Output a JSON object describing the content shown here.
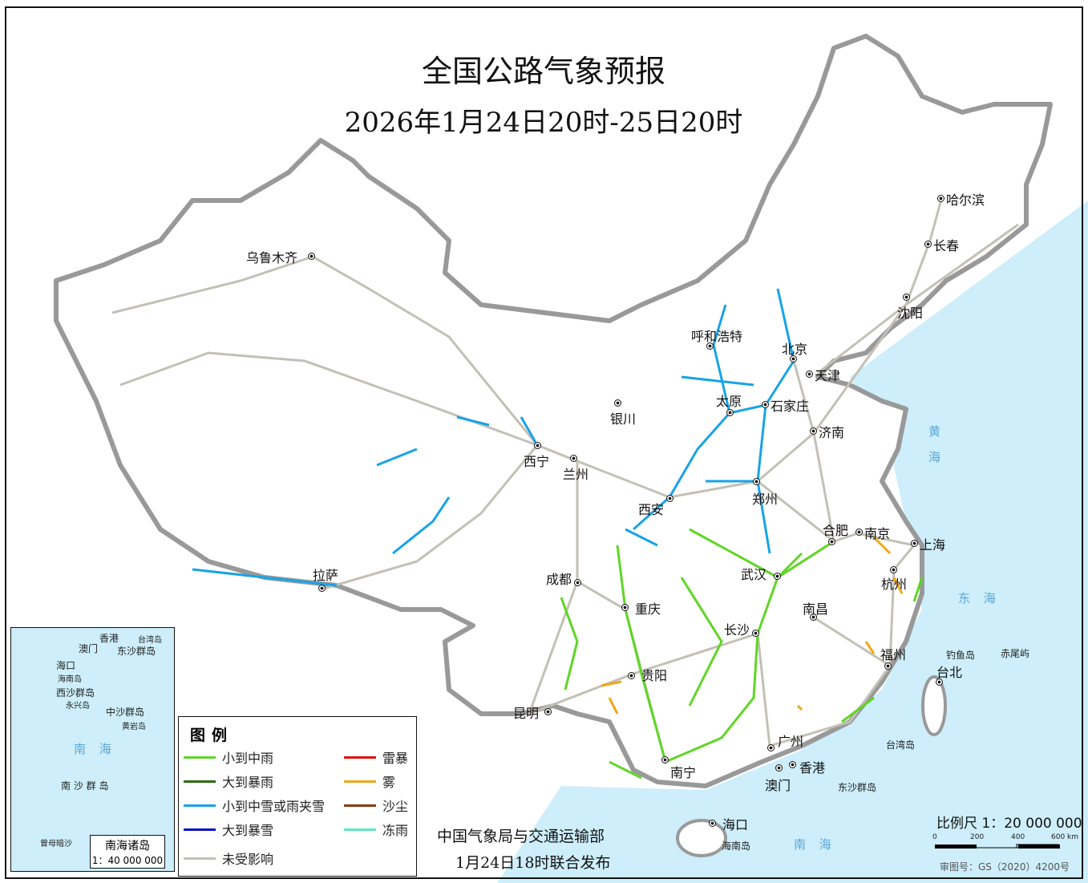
{
  "title": "全国公路气象预报",
  "subtitle": "2026年1月24日20时-25日20时",
  "cities": [
    "乌鲁木齐",
    "呼和浩特",
    "北京",
    "天津",
    "太原",
    "石家庄",
    "银川",
    "济南",
    "西宁",
    "兰州",
    "西安",
    "郑州",
    "合肥",
    "南京",
    "上海",
    "武汉",
    "杭州",
    "成都",
    "重庆",
    "南昌",
    "长沙",
    "拉萨",
    "福州",
    "台北",
    "贵阳",
    "昆明",
    "广州",
    "香港",
    "澳门",
    "南宁",
    "海口",
    "哈尔滨",
    "长春",
    "沈阳"
  ],
  "islands": {
    "hainan": "海南岛",
    "taiwan_island": "台湾岛",
    "dongsha": "东沙群岛",
    "diaoyu": "钓鱼岛",
    "chiwei": "赤尾屿"
  },
  "seas": {
    "huanghai": "黄 海",
    "donghai": "东 海",
    "nanhai": "南 海"
  },
  "legend": {
    "title": "图例",
    "items": [
      {
        "label": "小到中雨",
        "color": "#5fd625"
      },
      {
        "label": "大到暴雨",
        "color": "#2e6b12"
      },
      {
        "label": "小到中雪或雨夹雪",
        "color": "#18a3e6"
      },
      {
        "label": "大到暴雪",
        "color": "#0b14c8"
      },
      {
        "label": "未受影响",
        "color": "#c3c0b6"
      },
      {
        "label": "雷暴",
        "color": "#e01010"
      },
      {
        "label": "雾",
        "color": "#f0a818"
      },
      {
        "label": "沙尘",
        "color": "#8b3b0e"
      },
      {
        "label": "冻雨",
        "color": "#5ee8b8"
      }
    ]
  },
  "inset": {
    "title": "南海诸岛",
    "scale": "1：40 000 000",
    "labels": [
      "香港",
      "澳门",
      "台湾岛",
      "东沙群岛",
      "海口",
      "海南岛",
      "西沙群岛",
      "永兴岛",
      "中沙群岛",
      "黄岩岛",
      "南 沙 群 岛",
      "曾母暗沙"
    ],
    "sea": "南  海"
  },
  "publisher": {
    "line1": "中国气象局与交通运输部",
    "line2": "1月24日18时联合发布"
  },
  "scale": {
    "label": "比例尺 1：20 000 000",
    "ticks": [
      "0",
      "200",
      "400",
      "600 km"
    ]
  },
  "map_approval": "审图号：GS（2020）4200号",
  "colors": {
    "sea": "#cdeefa",
    "land": "#ffffff",
    "border": "#8a8a8a"
  }
}
